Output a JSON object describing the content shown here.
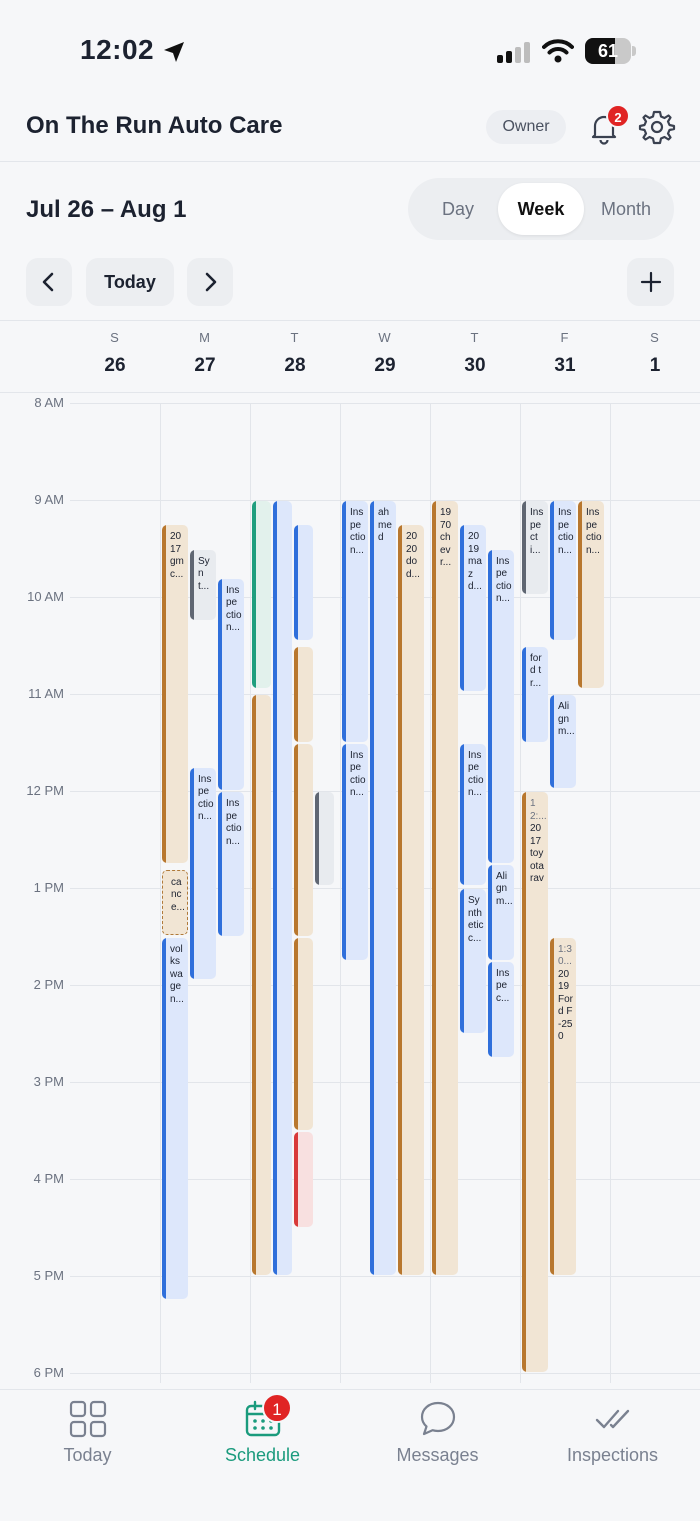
{
  "status_bar": {
    "time": "12:02",
    "battery": "61"
  },
  "header": {
    "title": "On The Run Auto Care",
    "role_badge": "Owner",
    "notification_count": "2"
  },
  "toolbar": {
    "date_range": "Jul 26 – Aug 1",
    "view_options": [
      "Day",
      "Week",
      "Month"
    ],
    "active_view": "Week",
    "today_label": "Today"
  },
  "week_days": [
    {
      "letter": "S",
      "num": "26"
    },
    {
      "letter": "M",
      "num": "27"
    },
    {
      "letter": "T",
      "num": "28"
    },
    {
      "letter": "W",
      "num": "29"
    },
    {
      "letter": "T",
      "num": "30"
    },
    {
      "letter": "F",
      "num": "31"
    },
    {
      "letter": "S",
      "num": "1"
    }
  ],
  "hours": [
    "8 AM",
    "9 AM",
    "10 AM",
    "11 AM",
    "12 PM",
    "1 PM",
    "2 PM",
    "3 PM",
    "4 PM",
    "5 PM",
    "6 PM"
  ],
  "colors": {
    "blue": "#2f6fdb",
    "orange": "#b8772e",
    "green": "#1f9e7e",
    "gray": "#5f6672",
    "red": "#d83a3a",
    "accent": "#1a9b7d"
  },
  "events": [
    {
      "day": 1,
      "start": 9.25,
      "end": 12.75,
      "lane": 0,
      "lanes": 3,
      "color": "orange",
      "text": "2017 gmc..."
    },
    {
      "day": 1,
      "start": 9.5,
      "end": 10.25,
      "lane": 1,
      "lanes": 3,
      "color": "gray",
      "text": "Synt..."
    },
    {
      "day": 1,
      "start": 9.8,
      "end": 12.0,
      "lane": 2,
      "lanes": 3,
      "color": "blue",
      "text": "Inspection..."
    },
    {
      "day": 1,
      "start": 11.75,
      "end": 13.95,
      "lane": 1,
      "lanes": 3,
      "color": "blue",
      "text": "Inspection..."
    },
    {
      "day": 1,
      "start": 12.0,
      "end": 13.5,
      "lane": 2,
      "lanes": 3,
      "color": "blue",
      "text": "Inspection..."
    },
    {
      "day": 1,
      "start": 12.8,
      "end": 13.5,
      "lane": 0,
      "lanes": 3,
      "color": "orange",
      "text": "cance...",
      "dashed": true
    },
    {
      "day": 1,
      "start": 13.5,
      "end": 17.25,
      "lane": 0,
      "lanes": 3,
      "color": "blue",
      "text": "volkswagen..."
    },
    {
      "day": 2,
      "start": 9.0,
      "end": 10.95,
      "lane": 0,
      "lanes": 4,
      "color": "green",
      "text": ""
    },
    {
      "day": 2,
      "start": 11.0,
      "end": 17.0,
      "lane": 0,
      "lanes": 4,
      "color": "orange",
      "text": ""
    },
    {
      "day": 2,
      "start": 9.0,
      "end": 17.0,
      "lane": 1,
      "lanes": 4,
      "color": "blue",
      "text": ""
    },
    {
      "day": 2,
      "start": 9.25,
      "end": 10.45,
      "lane": 2,
      "lanes": 4,
      "color": "blue",
      "text": ""
    },
    {
      "day": 2,
      "start": 10.5,
      "end": 11.5,
      "lane": 2,
      "lanes": 4,
      "color": "orange",
      "text": ""
    },
    {
      "day": 2,
      "start": 11.5,
      "end": 13.5,
      "lane": 2,
      "lanes": 4,
      "color": "orange",
      "text": ""
    },
    {
      "day": 2,
      "start": 13.5,
      "end": 15.5,
      "lane": 2,
      "lanes": 4,
      "color": "orange",
      "text": ""
    },
    {
      "day": 2,
      "start": 15.5,
      "end": 16.5,
      "lane": 2,
      "lanes": 4,
      "color": "red",
      "text": ""
    },
    {
      "day": 2,
      "start": 12.0,
      "end": 12.98,
      "lane": 3,
      "lanes": 4,
      "color": "gray",
      "text": ""
    },
    {
      "day": 3,
      "start": 9.0,
      "end": 11.5,
      "lane": 0,
      "lanes": 3,
      "color": "blue",
      "text": "Inspection..."
    },
    {
      "day": 3,
      "start": 11.5,
      "end": 13.75,
      "lane": 0,
      "lanes": 3,
      "color": "blue",
      "text": "Inspection..."
    },
    {
      "day": 3,
      "start": 9.0,
      "end": 17.0,
      "lane": 1,
      "lanes": 3,
      "color": "blue",
      "text": "ahmed"
    },
    {
      "day": 3,
      "start": 9.25,
      "end": 17.0,
      "lane": 2,
      "lanes": 3,
      "color": "orange",
      "text": "2020 dod..."
    },
    {
      "day": 4,
      "start": 9.0,
      "end": 17.0,
      "lane": 0,
      "lanes": 3,
      "color": "orange",
      "text": "1970 chevr..."
    },
    {
      "day": 4,
      "start": 9.25,
      "end": 10.98,
      "lane": 1,
      "lanes": 3,
      "color": "blue",
      "text": "2019 mazd..."
    },
    {
      "day": 4,
      "start": 11.5,
      "end": 12.98,
      "lane": 1,
      "lanes": 3,
      "color": "blue",
      "text": "Inspection..."
    },
    {
      "day": 4,
      "start": 13.0,
      "end": 14.5,
      "lane": 1,
      "lanes": 3,
      "color": "blue",
      "text": "Synthetic c..."
    },
    {
      "day": 4,
      "start": 9.5,
      "end": 12.75,
      "lane": 2,
      "lanes": 3,
      "color": "blue",
      "text": "Inspection..."
    },
    {
      "day": 4,
      "start": 12.75,
      "end": 13.75,
      "lane": 2,
      "lanes": 3,
      "color": "blue",
      "text": "Alignm..."
    },
    {
      "day": 4,
      "start": 13.75,
      "end": 14.75,
      "lane": 2,
      "lanes": 3,
      "color": "blue",
      "text": "Inspec..."
    },
    {
      "day": 5,
      "start": 9.0,
      "end": 9.98,
      "lane": 0,
      "lanes": 3,
      "color": "gray",
      "text": "Inspecti..."
    },
    {
      "day": 5,
      "start": 10.5,
      "end": 11.5,
      "lane": 0,
      "lanes": 3,
      "color": "blue",
      "text": "ford tr..."
    },
    {
      "day": 5,
      "start": 12.0,
      "end": 18.0,
      "lane": 0,
      "lanes": 3,
      "color": "orange",
      "text": "2017 toyota rav",
      "sub": "12:..."
    },
    {
      "day": 5,
      "start": 9.0,
      "end": 10.45,
      "lane": 1,
      "lanes": 3,
      "color": "blue",
      "text": "Inspection..."
    },
    {
      "day": 5,
      "start": 11.0,
      "end": 11.98,
      "lane": 1,
      "lanes": 3,
      "color": "blue",
      "text": "Alignm..."
    },
    {
      "day": 5,
      "start": 13.5,
      "end": 17.0,
      "lane": 1,
      "lanes": 3,
      "color": "orange",
      "text": "2019 Ford F-250",
      "sub": "1:30..."
    },
    {
      "day": 5,
      "start": 9.0,
      "end": 10.95,
      "lane": 2,
      "lanes": 3,
      "color": "orange",
      "text": "Inspection..."
    }
  ],
  "tabs": [
    {
      "label": "Today",
      "icon": "grid-icon"
    },
    {
      "label": "Schedule",
      "icon": "calendar-icon",
      "badge": "1",
      "active": true
    },
    {
      "label": "Messages",
      "icon": "chat-bubble-icon"
    },
    {
      "label": "Inspections",
      "icon": "double-check-icon"
    }
  ]
}
